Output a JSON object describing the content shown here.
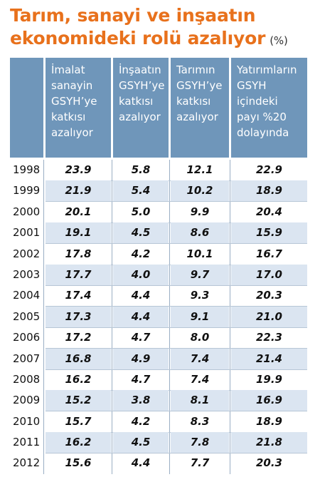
{
  "title": {
    "line1": "Tarım, sanayi ve inşaatın",
    "line2": "ekonomideki rolü azalıyor",
    "unit": "(%)"
  },
  "chart_data": {
    "type": "table",
    "columns": [
      {
        "lines": [
          "İmalat",
          "sanayin",
          "GSYH’ye",
          "katkısı",
          "azalıyor"
        ]
      },
      {
        "lines": [
          "İnşaatın",
          "GSYH’ye",
          "katkısı",
          "azalıyor"
        ]
      },
      {
        "lines": [
          "Tarımın",
          "GSYH’ye",
          "katkısı",
          "azalıyor"
        ]
      },
      {
        "lines": [
          "Yatırımların",
          "GSYH içindeki",
          "payı %20",
          "dolayında"
        ]
      }
    ],
    "rows": [
      {
        "year": "1998",
        "values": [
          "23.9",
          "5.8",
          "12.1",
          "22.9"
        ]
      },
      {
        "year": "1999",
        "values": [
          "21.9",
          "5.4",
          "10.2",
          "18.9"
        ]
      },
      {
        "year": "2000",
        "values": [
          "20.1",
          "5.0",
          "9.9",
          "20.4"
        ]
      },
      {
        "year": "2001",
        "values": [
          "19.1",
          "4.5",
          "8.6",
          "15.9"
        ]
      },
      {
        "year": "2002",
        "values": [
          "17.8",
          "4.2",
          "10.1",
          "16.7"
        ]
      },
      {
        "year": "2003",
        "values": [
          "17.7",
          "4.0",
          "9.7",
          "17.0"
        ]
      },
      {
        "year": "2004",
        "values": [
          "17.4",
          "4.4",
          "9.3",
          "20.3"
        ]
      },
      {
        "year": "2005",
        "values": [
          "17.3",
          "4.4",
          "9.1",
          "21.0"
        ]
      },
      {
        "year": "2006",
        "values": [
          "17.2",
          "4.7",
          "8.0",
          "22.3"
        ]
      },
      {
        "year": "2007",
        "values": [
          "16.8",
          "4.9",
          "7.4",
          "21.4"
        ]
      },
      {
        "year": "2008",
        "values": [
          "16.2",
          "4.7",
          "7.4",
          "19.9"
        ]
      },
      {
        "year": "2009",
        "values": [
          "15.2",
          "3.8",
          "8.1",
          "16.9"
        ]
      },
      {
        "year": "2010",
        "values": [
          "15.7",
          "4.2",
          "8.3",
          "18.9"
        ]
      },
      {
        "year": "2011",
        "values": [
          "16.2",
          "4.5",
          "7.8",
          "21.8"
        ]
      },
      {
        "year": "2012",
        "values": [
          "15.6",
          "4.4",
          "7.7",
          "20.3"
        ]
      }
    ]
  },
  "colors": {
    "title": "#e8711c",
    "header_bg": "#6f96ba",
    "alt_row_bg": "#dbe5f1"
  }
}
